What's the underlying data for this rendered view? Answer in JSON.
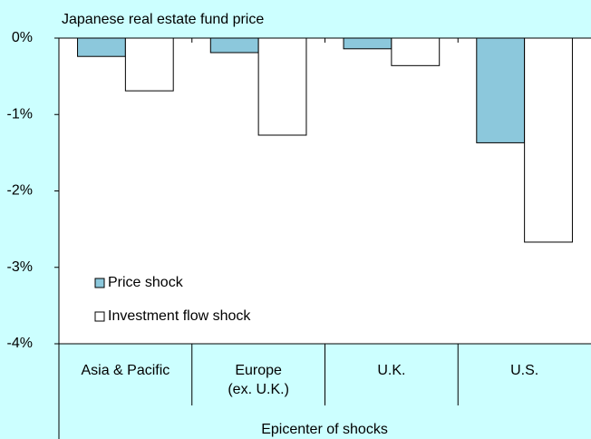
{
  "chart_data": {
    "type": "bar",
    "title": "Japanese real estate fund price",
    "x_label": "Epicenter of shocks",
    "categories": [
      "Asia & Pacific",
      "Europe\n(ex. U.K.)",
      "U.K.",
      "U.S."
    ],
    "series": [
      {
        "name": "Price shock",
        "color": "#8cc8dc",
        "values": [
          -0.24,
          -0.19,
          -0.14,
          -1.37
        ]
      },
      {
        "name": "Investment flow shock",
        "color": "#ffffff",
        "values": [
          -0.69,
          -1.27,
          -0.36,
          -2.67
        ]
      }
    ],
    "ylim": [
      -4,
      0
    ],
    "yticks": [
      {
        "value": 0,
        "label": "0%"
      },
      {
        "value": -1,
        "label": "-1%"
      },
      {
        "value": -2,
        "label": "-2%"
      },
      {
        "value": -3,
        "label": "-3%"
      },
      {
        "value": -4,
        "label": "-4%"
      }
    ],
    "legend": "lower left"
  }
}
